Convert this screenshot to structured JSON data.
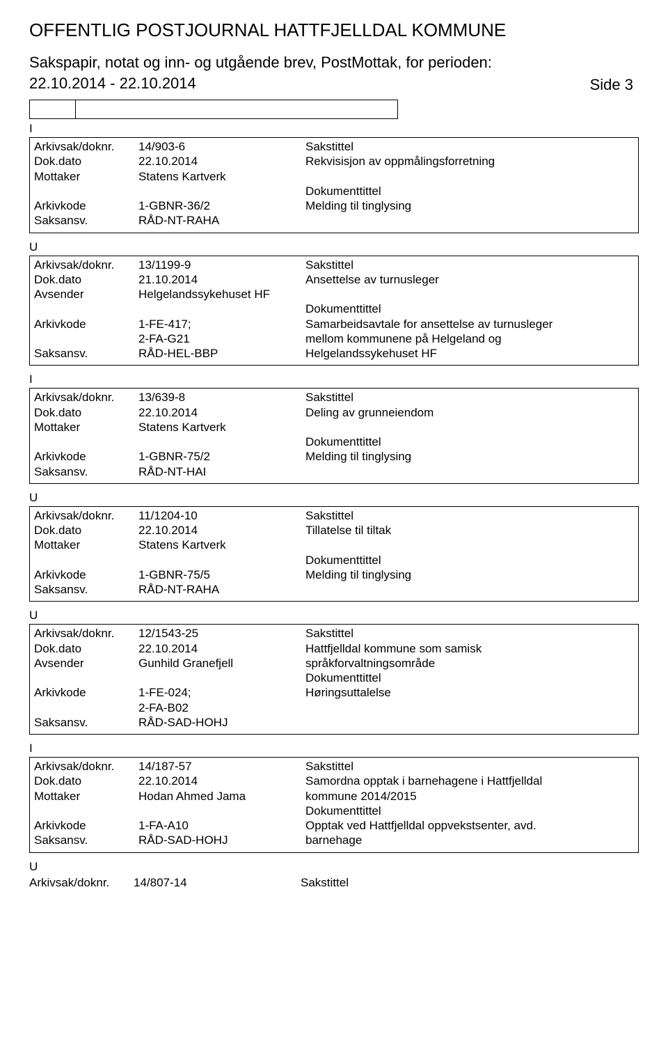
{
  "header": {
    "title": "OFFENTLIG POSTJOURNAL HATTFJELLDAL KOMMUNE",
    "subtitle_line1": "Sakspapir, notat og inn- og utgående brev, PostMottak, for perioden:",
    "subtitle_line2": "22.10.2014 - 22.10.2014",
    "side_label": "Side 3"
  },
  "labels": {
    "arkivsak": "Arkivsak/doknr.",
    "dokdato": "Dok.dato",
    "mottaker": "Mottaker",
    "avsender": "Avsender",
    "arkivkode": "Arkivkode",
    "saksansv": "Saksansv.",
    "sakstittel": "Sakstittel",
    "dokumenttittel": "Dokumenttittel"
  },
  "entries": [
    {
      "tag": "I",
      "arkivsak": "14/903-6",
      "dokdato": "22.10.2014",
      "party_label": "Mottaker",
      "party": "Statens Kartverk",
      "arkivkode": "1-GBNR-36/2",
      "arkivkode2": "",
      "saksansv": "RÅD-NT-RAHA",
      "sakstittel": "Rekvisisjon av oppmålingsforretning",
      "doktittel": "Melding til tinglysing",
      "doktittel2": "",
      "doktittel3": ""
    },
    {
      "tag": "U",
      "arkivsak": "13/1199-9",
      "dokdato": "21.10.2014",
      "party_label": "Avsender",
      "party": "Helgelandssykehuset HF",
      "arkivkode": "1-FE-417;",
      "arkivkode2": "2-FA-G21",
      "saksansv": "RÅD-HEL-BBP",
      "sakstittel": "Ansettelse av turnusleger",
      "doktittel": "Samarbeidsavtale for ansettelse av turnusleger",
      "doktittel2": "mellom kommunene på Helgeland og",
      "doktittel3": "Helgelandssykehuset HF"
    },
    {
      "tag": "I",
      "arkivsak": "13/639-8",
      "dokdato": "22.10.2014",
      "party_label": "Mottaker",
      "party": "Statens Kartverk",
      "arkivkode": "1-GBNR-75/2",
      "arkivkode2": "",
      "saksansv": "RÅD-NT-HAI",
      "sakstittel": "Deling av grunneiendom",
      "doktittel": "Melding til tinglysing",
      "doktittel2": "",
      "doktittel3": ""
    },
    {
      "tag": "U",
      "arkivsak": "11/1204-10",
      "dokdato": "22.10.2014",
      "party_label": "Mottaker",
      "party": "Statens Kartverk",
      "arkivkode": "1-GBNR-75/5",
      "arkivkode2": "",
      "saksansv": "RÅD-NT-RAHA",
      "sakstittel": "Tillatelse til tiltak",
      "doktittel": "Melding til tinglysing",
      "doktittel2": "",
      "doktittel3": ""
    },
    {
      "tag": "U",
      "arkivsak": "12/1543-25",
      "dokdato": "22.10.2014",
      "party_label": "Avsender",
      "party": "Gunhild Granefjell",
      "arkivkode": "1-FE-024;",
      "arkivkode2": "2-FA-B02",
      "saksansv": "RÅD-SAD-HOHJ",
      "sakstittel": "Hattfjelldal kommune som samisk",
      "sakstittel2": "språkforvaltningsområde",
      "doktittel": "Høringsuttalelse",
      "doktittel2": "",
      "doktittel3": ""
    },
    {
      "tag": "I",
      "arkivsak": "14/187-57",
      "dokdato": "22.10.2014",
      "party_label": "Mottaker",
      "party": "Hodan Ahmed Jama",
      "arkivkode": "1-FA-A10",
      "arkivkode2": "",
      "saksansv": "RÅD-SAD-HOHJ",
      "sakstittel": "Samordna opptak i barnehagene i Hattfjelldal",
      "sakstittel2": "kommune 2014/2015",
      "doktittel": "Opptak ved Hattfjelldal oppvekstsenter, avd.",
      "doktittel2": "barnehage",
      "doktittel3": ""
    }
  ],
  "partial": {
    "tag": "U",
    "arkivsak": "14/807-14",
    "sakstittel": "Sakstittel"
  }
}
